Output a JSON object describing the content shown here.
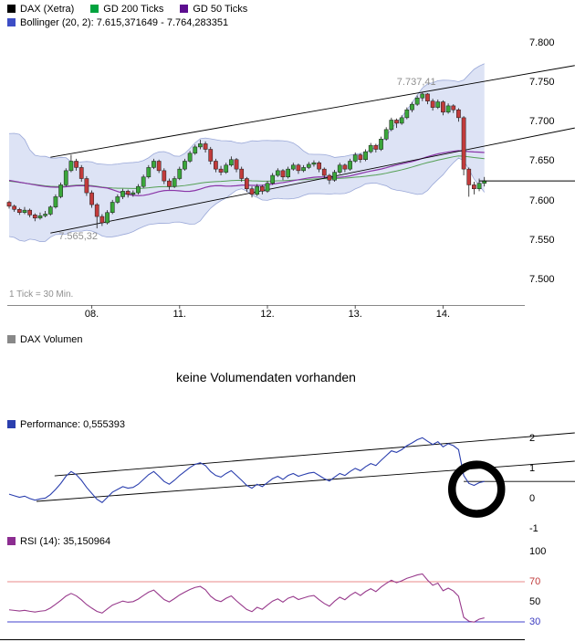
{
  "main_chart": {
    "legend": {
      "series": [
        {
          "label": "DAX (Xetra)",
          "color": "#000000"
        },
        {
          "label": "GD 200 Ticks",
          "color": "#00a33e"
        },
        {
          "label": "GD 50 Ticks",
          "color": "#5c0d8f"
        }
      ],
      "bollinger": {
        "label": "Bollinger (20, 2): 7.615,371649 - 7.764,283351",
        "color": "#3d4ec6"
      }
    },
    "y_axis": {
      "values": [
        7800,
        7750,
        7700,
        7650,
        7600,
        7550,
        7500
      ],
      "labels": [
        "7.800",
        "7.750",
        "7.700",
        "7.650",
        "7.600",
        "7.550",
        "7.500"
      ]
    },
    "tick_note": "1 Tick = 30 Min."
  },
  "volume_panel": {
    "legend": "DAX Volumen",
    "color": "#888888",
    "message": "keine Volumendaten vorhanden"
  },
  "performance_panel": {
    "legend": "Performance: 0,555393",
    "color": "#2b3fae",
    "y_axis": {
      "values": [
        2,
        1,
        0,
        -1
      ],
      "labels": [
        "2",
        "1",
        "0",
        "-1"
      ]
    }
  },
  "rsi_panel": {
    "legend": "RSI (14): 35,150964",
    "color": "#8c2d91",
    "y_axis": {
      "values": [
        100,
        70,
        50,
        30
      ],
      "labels": [
        "100",
        "70",
        "50",
        "30"
      ],
      "colors": [
        "#000000",
        "#c03a3a",
        "#000000",
        "#3a3ac0"
      ]
    }
  },
  "chart_data": [
    {
      "type": "candlestick",
      "title": "DAX (Xetra), 1 Tick = 30 Min.",
      "ylim": [
        7468,
        7810
      ],
      "y_ticks": [
        7800,
        7750,
        7700,
        7650,
        7600,
        7550,
        7500
      ],
      "x_tick_labels": [
        "08.",
        "11.",
        "12.",
        "13.",
        "14."
      ],
      "x_tick_indices": [
        16,
        33,
        50,
        67,
        84
      ],
      "candles_ohlc": [
        [
          7598,
          7600,
          7590,
          7593
        ],
        [
          7593,
          7595,
          7586,
          7589
        ],
        [
          7589,
          7591,
          7582,
          7585
        ],
        [
          7585,
          7592,
          7583,
          7588
        ],
        [
          7588,
          7590,
          7579,
          7582
        ],
        [
          7582,
          7584,
          7574,
          7578
        ],
        [
          7578,
          7585,
          7576,
          7581
        ],
        [
          7581,
          7587,
          7579,
          7583
        ],
        [
          7583,
          7594,
          7581,
          7592
        ],
        [
          7592,
          7608,
          7590,
          7605
        ],
        [
          7605,
          7623,
          7603,
          7620
        ],
        [
          7620,
          7641,
          7618,
          7638
        ],
        [
          7638,
          7658,
          7636,
          7650
        ],
        [
          7650,
          7653,
          7638,
          7642
        ],
        [
          7642,
          7645,
          7624,
          7628
        ],
        [
          7628,
          7631,
          7606,
          7610
        ],
        [
          7610,
          7613,
          7591,
          7595
        ],
        [
          7595,
          7597,
          7565,
          7580
        ],
        [
          7580,
          7583,
          7568,
          7572
        ],
        [
          7572,
          7588,
          7570,
          7585
        ],
        [
          7585,
          7601,
          7583,
          7598
        ],
        [
          7598,
          7608,
          7596,
          7605
        ],
        [
          7605,
          7615,
          7602,
          7612
        ],
        [
          7612,
          7614,
          7604,
          7608
        ],
        [
          7608,
          7613,
          7605,
          7610
        ],
        [
          7610,
          7621,
          7608,
          7618
        ],
        [
          7618,
          7633,
          7616,
          7630
        ],
        [
          7630,
          7645,
          7628,
          7642
        ],
        [
          7642,
          7653,
          7640,
          7650
        ],
        [
          7650,
          7652,
          7635,
          7638
        ],
        [
          7638,
          7641,
          7621,
          7625
        ],
        [
          7625,
          7628,
          7614,
          7618
        ],
        [
          7618,
          7631,
          7616,
          7628
        ],
        [
          7628,
          7643,
          7626,
          7640
        ],
        [
          7640,
          7653,
          7638,
          7650
        ],
        [
          7650,
          7663,
          7648,
          7660
        ],
        [
          7660,
          7671,
          7658,
          7668
        ],
        [
          7668,
          7677,
          7665,
          7672
        ],
        [
          7672,
          7675,
          7661,
          7665
        ],
        [
          7665,
          7668,
          7646,
          7650
        ],
        [
          7650,
          7653,
          7636,
          7640
        ],
        [
          7640,
          7644,
          7632,
          7636
        ],
        [
          7636,
          7648,
          7634,
          7645
        ],
        [
          7645,
          7656,
          7643,
          7652
        ],
        [
          7652,
          7654,
          7636,
          7640
        ],
        [
          7640,
          7643,
          7624,
          7628
        ],
        [
          7628,
          7630,
          7611,
          7615
        ],
        [
          7615,
          7618,
          7604,
          7608
        ],
        [
          7608,
          7621,
          7606,
          7618
        ],
        [
          7618,
          7620,
          7608,
          7612
        ],
        [
          7612,
          7625,
          7610,
          7622
        ],
        [
          7622,
          7635,
          7620,
          7632
        ],
        [
          7632,
          7641,
          7630,
          7638
        ],
        [
          7638,
          7640,
          7626,
          7630
        ],
        [
          7630,
          7643,
          7628,
          7640
        ],
        [
          7640,
          7648,
          7638,
          7645
        ],
        [
          7645,
          7647,
          7634,
          7638
        ],
        [
          7638,
          7645,
          7636,
          7642
        ],
        [
          7642,
          7649,
          7640,
          7646
        ],
        [
          7646,
          7651,
          7643,
          7648
        ],
        [
          7648,
          7650,
          7636,
          7640
        ],
        [
          7640,
          7642,
          7628,
          7632
        ],
        [
          7632,
          7634,
          7621,
          7626
        ],
        [
          7626,
          7639,
          7624,
          7636
        ],
        [
          7636,
          7648,
          7634,
          7645
        ],
        [
          7645,
          7647,
          7636,
          7640
        ],
        [
          7640,
          7653,
          7638,
          7650
        ],
        [
          7650,
          7661,
          7648,
          7658
        ],
        [
          7658,
          7660,
          7648,
          7652
        ],
        [
          7652,
          7665,
          7650,
          7662
        ],
        [
          7662,
          7673,
          7660,
          7670
        ],
        [
          7670,
          7672,
          7661,
          7665
        ],
        [
          7665,
          7681,
          7663,
          7678
        ],
        [
          7678,
          7693,
          7676,
          7690
        ],
        [
          7690,
          7705,
          7688,
          7702
        ],
        [
          7702,
          7704,
          7692,
          7698
        ],
        [
          7698,
          7708,
          7696,
          7705
        ],
        [
          7705,
          7718,
          7703,
          7715
        ],
        [
          7715,
          7725,
          7712,
          7722
        ],
        [
          7722,
          7733,
          7720,
          7730
        ],
        [
          7730,
          7737,
          7726,
          7735
        ],
        [
          7735,
          7736,
          7722,
          7726
        ],
        [
          7726,
          7729,
          7714,
          7718
        ],
        [
          7718,
          7728,
          7716,
          7725
        ],
        [
          7725,
          7727,
          7708,
          7712
        ],
        [
          7712,
          7723,
          7710,
          7720
        ],
        [
          7720,
          7722,
          7711,
          7715
        ],
        [
          7715,
          7717,
          7700,
          7705
        ],
        [
          7705,
          7707,
          7632,
          7640
        ],
        [
          7640,
          7642,
          7605,
          7620
        ],
        [
          7620,
          7624,
          7608,
          7615
        ],
        [
          7615,
          7628,
          7612,
          7622
        ],
        [
          7622,
          7630,
          7618,
          7625
        ]
      ],
      "prehistory_closes": [
        7700,
        7720,
        7712,
        7695,
        7668,
        7640,
        7612,
        7585,
        7560,
        7545,
        7565,
        7598,
        7635,
        7665,
        7685,
        7655,
        7618,
        7580,
        7558,
        7575,
        7608,
        7640,
        7668,
        7648,
        7620,
        7592,
        7610,
        7628,
        7615,
        7605
      ],
      "indicators": {
        "bollinger_period": 20,
        "bollinger_stddev": 2,
        "gd_fast": 50,
        "gd_slow": 200
      },
      "annotations": {
        "high": {
          "index": 80,
          "price": 7737.41,
          "label": "7.737,41"
        },
        "low": {
          "index": 17,
          "price": 7565.32,
          "label": "7.565,32"
        },
        "last_price": 7625,
        "trend_lines": [
          {
            "i1": 8,
            "p1": 7655,
            "i2": 109.5,
            "p2": 7771
          },
          {
            "i1": 8,
            "p1": 7559,
            "i2": 109.5,
            "p2": 7692
          }
        ]
      }
    },
    {
      "type": "bar",
      "name": "DAX Volumen",
      "values": [],
      "note": "keine Volumendaten vorhanden"
    },
    {
      "type": "line",
      "name": "Performance",
      "unit": "%",
      "last_value": 0.555393,
      "base_close": 7582.9,
      "ylim": [
        -1.2,
        2.3
      ],
      "y_ticks": [
        2,
        1,
        0,
        -1
      ],
      "trend_lines": [
        {
          "i1": 5.3,
          "v1": -0.106,
          "i2": 109.5,
          "v2": 1.227
        },
        {
          "i1": 8.8,
          "v1": 0.742,
          "i2": 109.5,
          "v2": 2.167
        }
      ],
      "circle_annotation": {
        "index": 90.5,
        "value": 0.3,
        "radius": 27
      }
    },
    {
      "type": "line",
      "name": "RSI",
      "period": 14,
      "last_value": 35.150964,
      "ylim": [
        12,
        104
      ],
      "y_ticks": [
        100,
        70,
        50,
        30
      ],
      "levels": [
        {
          "value": 70,
          "color": "#e98a8a"
        },
        {
          "value": 30,
          "color": "#4040cc"
        }
      ]
    }
  ]
}
